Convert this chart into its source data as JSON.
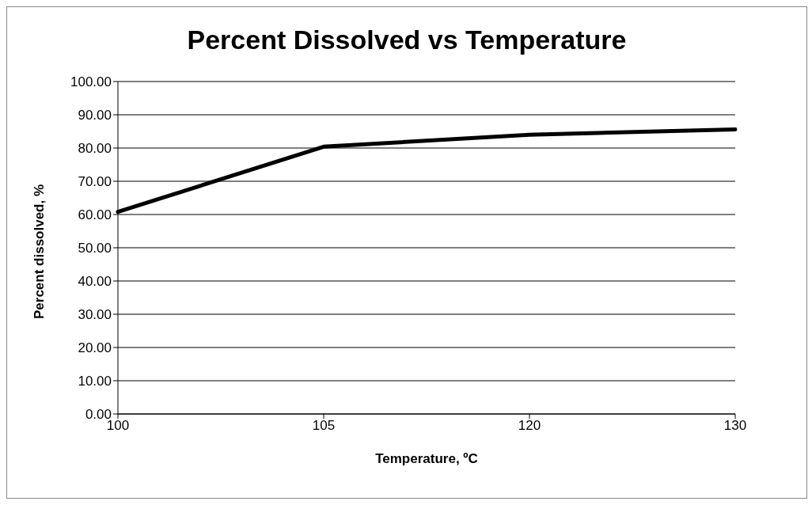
{
  "chart_data": {
    "type": "line",
    "title": "Percent Dissolved vs Temperature",
    "xlabel": "Temperature, ºC",
    "ylabel": "Percent dissolved, %",
    "categories": [
      "100",
      "105",
      "120",
      "130"
    ],
    "series": [
      {
        "color": "#000000",
        "values": [
          60.8,
          80.4,
          84.0,
          85.6
        ]
      }
    ],
    "ylim": [
      0,
      100
    ],
    "yticks": [
      {
        "value": 0,
        "label": "0.00"
      },
      {
        "value": 10,
        "label": "10.00"
      },
      {
        "value": 20,
        "label": "20.00"
      },
      {
        "value": 30,
        "label": "30.00"
      },
      {
        "value": 40,
        "label": "40.00"
      },
      {
        "value": 50,
        "label": "50.00"
      },
      {
        "value": 60,
        "label": "60.00"
      },
      {
        "value": 70,
        "label": "70.00"
      },
      {
        "value": 80,
        "label": "80.00"
      },
      {
        "value": 90,
        "label": "90.00"
      },
      {
        "value": 100,
        "label": "100.00"
      }
    ],
    "grid": "y",
    "legend": false,
    "marker": "none",
    "line_style": "solid"
  }
}
